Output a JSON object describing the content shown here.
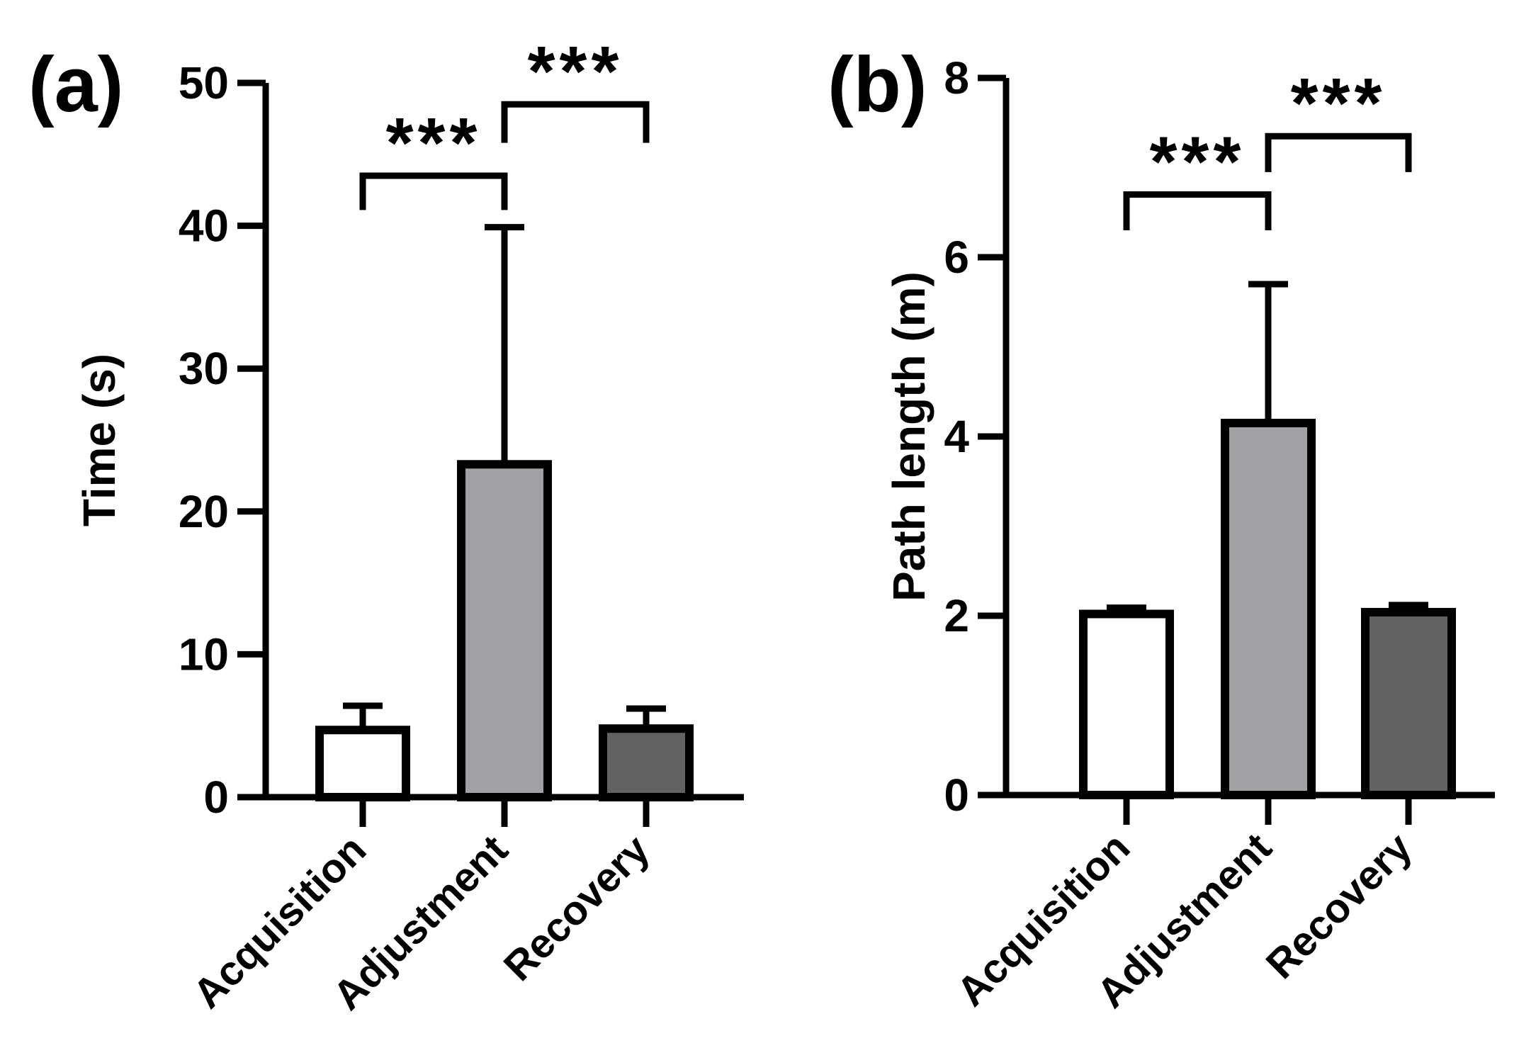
{
  "chart_data": [
    {
      "panel_label": "(a)",
      "type": "bar",
      "categories": [
        "Acquisition",
        "Adjustment",
        "Recovery"
      ],
      "values": [
        4.7,
        23.3,
        4.8
      ],
      "errors": [
        1.7,
        16.6,
        1.4
      ],
      "bar_colors": [
        "#ffffff",
        "#a2a1a6",
        "#626262"
      ],
      "ylabel": "Time (s)",
      "ylim": [
        0,
        50
      ],
      "yticks": [
        0,
        10,
        20,
        30,
        40,
        50
      ],
      "grid": false,
      "significance": [
        {
          "from": 0,
          "to": 1,
          "label": "***",
          "y": 43.5,
          "drop_left": 2.4,
          "drop_right": 2.4
        },
        {
          "from": 1,
          "to": 2,
          "label": "***",
          "y": 48.5,
          "drop_left": 2.7,
          "drop_right": 2.7
        }
      ]
    },
    {
      "panel_label": "(b)",
      "type": "bar",
      "categories": [
        "Acquisition",
        "Adjustment",
        "Recovery"
      ],
      "values": [
        2.02,
        4.15,
        2.04
      ],
      "errors": [
        0.07,
        1.55,
        0.08
      ],
      "bar_colors": [
        "#ffffff",
        "#a2a1a6",
        "#626262"
      ],
      "ylabel": "Path length (m)",
      "ylim": [
        0,
        8
      ],
      "yticks": [
        0,
        2,
        4,
        6,
        8
      ],
      "grid": false,
      "significance": [
        {
          "from": 0,
          "to": 1,
          "label": "***",
          "y": 6.7,
          "drop_left": 0.4,
          "drop_right": 0.4
        },
        {
          "from": 1,
          "to": 2,
          "label": "***",
          "y": 7.35,
          "drop_left": 0.4,
          "drop_right": 0.4
        }
      ]
    }
  ]
}
